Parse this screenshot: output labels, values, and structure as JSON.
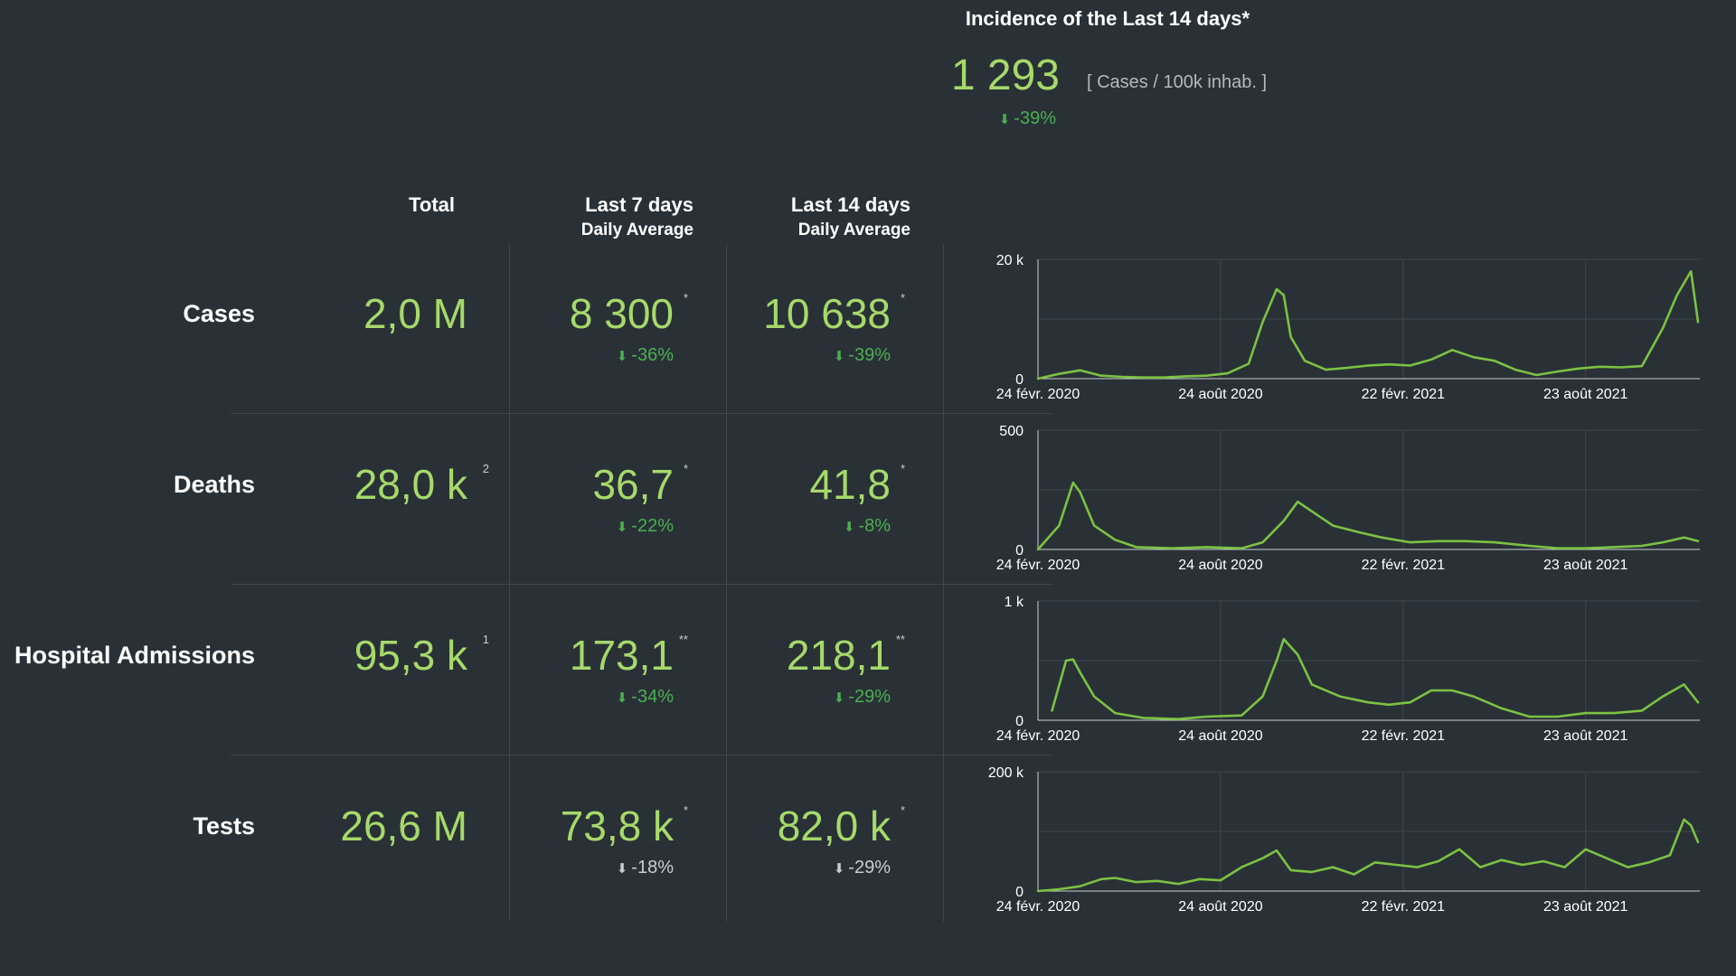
{
  "incidence": {
    "title": "Incidence of the Last 14 days*",
    "value": "1 293",
    "unit": "[ Cases / 100k inhab. ]",
    "change": "-39%"
  },
  "columns": {
    "total": "Total",
    "last7": "Last 7 days",
    "last7_sub": "Daily Average",
    "last14": "Last 14 days",
    "last14_sub": "Daily Average"
  },
  "rows": [
    {
      "label": "Cases",
      "total": "2,0 M",
      "total_sup": "",
      "last7": "8 300",
      "last7_sup": "*",
      "last7_change": "-36%",
      "last14": "10 638",
      "last14_sup": "*",
      "last14_change": "-39%",
      "change_color": "#4caf50",
      "arrow_icon": "arrow-down-icon"
    },
    {
      "label": "Deaths",
      "total": "28,0 k",
      "total_sup": "2",
      "last7": "36,7",
      "last7_sup": "*",
      "last7_change": "-22%",
      "last14": "41,8",
      "last14_sup": "*",
      "last14_change": "-8%",
      "change_color": "#4caf50",
      "arrow_icon": "arrow-down-icon"
    },
    {
      "label": "Hospital Admissions",
      "total": "95,3 k",
      "total_sup": "1",
      "last7": "173,1",
      "last7_sup": "**",
      "last7_change": "-34%",
      "last14": "218,1",
      "last14_sup": "**",
      "last14_change": "-29%",
      "change_color": "#4caf50",
      "arrow_icon": "arrow-down-icon"
    },
    {
      "label": "Tests",
      "total": "26,6 M",
      "total_sup": "",
      "last7": "73,8 k",
      "last7_sup": "*",
      "last7_change": "-18%",
      "last14": "82,0 k",
      "last14_sup": "*",
      "last14_change": "-29%",
      "change_color": "#c9ced1",
      "arrow_icon": "arrow-down-icon"
    }
  ],
  "colors": {
    "background": "#293137",
    "value_green": "#a6d96a",
    "change_green": "#4caf50",
    "line": "#7cc242",
    "grid": "#3d474e"
  },
  "chart_data": [
    {
      "type": "line",
      "title": "",
      "xlabel": "",
      "ylabel": "",
      "x_tick_labels": [
        "24 févr. 2020",
        "24 août 2020",
        "22 févr. 2021",
        "23 août 2021"
      ],
      "y_tick_labels": [
        "0",
        "20 k"
      ],
      "ylim": [
        0,
        20000
      ],
      "grid": true,
      "x": [
        "2020-02-24",
        "2020-03-16",
        "2020-04-06",
        "2020-04-27",
        "2020-05-18",
        "2020-06-08",
        "2020-06-29",
        "2020-07-20",
        "2020-08-10",
        "2020-08-31",
        "2020-09-21",
        "2020-10-05",
        "2020-10-19",
        "2020-10-26",
        "2020-11-02",
        "2020-11-16",
        "2020-12-07",
        "2020-12-28",
        "2021-01-18",
        "2021-02-08",
        "2021-03-01",
        "2021-03-22",
        "2021-04-12",
        "2021-05-03",
        "2021-05-24",
        "2021-06-14",
        "2021-07-05",
        "2021-07-26",
        "2021-08-16",
        "2021-09-06",
        "2021-09-27",
        "2021-10-18",
        "2021-11-08",
        "2021-11-22",
        "2021-12-06",
        "2021-12-13"
      ],
      "series": [
        {
          "values": [
            0,
            800,
            1400,
            500,
            300,
            200,
            200,
            400,
            500,
            900,
            2500,
            9500,
            15000,
            14000,
            7000,
            3000,
            1500,
            1800,
            2200,
            2400,
            2200,
            3200,
            4800,
            3600,
            3000,
            1500,
            600,
            1200,
            1700,
            2000,
            1900,
            2100,
            8500,
            14000,
            18000,
            9500
          ]
        }
      ]
    },
    {
      "type": "line",
      "title": "",
      "xlabel": "",
      "ylabel": "",
      "x_tick_labels": [
        "24 févr. 2020",
        "24 août 2020",
        "22 févr. 2021",
        "23 août 2021"
      ],
      "y_tick_labels": [
        "0",
        "500"
      ],
      "ylim": [
        0,
        500
      ],
      "grid": true,
      "x": [
        "2020-02-24",
        "2020-03-16",
        "2020-03-30",
        "2020-04-06",
        "2020-04-20",
        "2020-05-11",
        "2020-06-01",
        "2020-07-06",
        "2020-08-10",
        "2020-09-14",
        "2020-10-05",
        "2020-10-26",
        "2020-11-09",
        "2020-11-23",
        "2020-12-14",
        "2021-01-11",
        "2021-02-01",
        "2021-03-01",
        "2021-03-29",
        "2021-04-26",
        "2021-05-24",
        "2021-06-28",
        "2021-07-26",
        "2021-08-23",
        "2021-09-20",
        "2021-10-18",
        "2021-11-08",
        "2021-11-29",
        "2021-12-13"
      ],
      "series": [
        {
          "values": [
            0,
            100,
            280,
            240,
            100,
            40,
            10,
            5,
            10,
            5,
            30,
            120,
            200,
            160,
            100,
            70,
            50,
            30,
            35,
            35,
            30,
            15,
            5,
            5,
            10,
            15,
            30,
            50,
            35
          ]
        }
      ]
    },
    {
      "type": "line",
      "title": "",
      "xlabel": "",
      "ylabel": "",
      "x_tick_labels": [
        "24 févr. 2020",
        "24 août 2020",
        "22 févr. 2021",
        "23 août 2021"
      ],
      "y_tick_labels": [
        "0",
        "1 k"
      ],
      "ylim": [
        0,
        1000
      ],
      "grid": true,
      "x": [
        "2020-03-09",
        "2020-03-23",
        "2020-03-30",
        "2020-04-06",
        "2020-04-20",
        "2020-05-11",
        "2020-06-08",
        "2020-07-13",
        "2020-08-10",
        "2020-09-14",
        "2020-10-05",
        "2020-10-19",
        "2020-10-26",
        "2020-11-09",
        "2020-11-23",
        "2020-12-21",
        "2021-01-18",
        "2021-02-08",
        "2021-03-01",
        "2021-03-22",
        "2021-04-12",
        "2021-05-03",
        "2021-05-31",
        "2021-06-28",
        "2021-07-26",
        "2021-08-23",
        "2021-09-20",
        "2021-10-18",
        "2021-11-08",
        "2021-11-29",
        "2021-12-13"
      ],
      "series": [
        {
          "values": [
            80,
            500,
            510,
            400,
            200,
            60,
            20,
            10,
            30,
            40,
            200,
            500,
            680,
            550,
            300,
            200,
            150,
            130,
            150,
            250,
            250,
            200,
            100,
            30,
            30,
            60,
            60,
            80,
            200,
            300,
            150
          ]
        }
      ]
    },
    {
      "type": "line",
      "title": "",
      "xlabel": "",
      "ylabel": "",
      "x_tick_labels": [
        "24 févr. 2020",
        "24 août 2020",
        "22 févr. 2021",
        "23 août 2021"
      ],
      "y_tick_labels": [
        "0",
        "200 k"
      ],
      "ylim": [
        0,
        200000
      ],
      "grid": true,
      "x": [
        "2020-02-24",
        "2020-03-16",
        "2020-04-06",
        "2020-04-27",
        "2020-05-11",
        "2020-06-01",
        "2020-06-22",
        "2020-07-13",
        "2020-08-03",
        "2020-08-24",
        "2020-09-14",
        "2020-10-05",
        "2020-10-19",
        "2020-11-02",
        "2020-11-23",
        "2020-12-14",
        "2021-01-04",
        "2021-01-25",
        "2021-02-15",
        "2021-03-08",
        "2021-03-29",
        "2021-04-19",
        "2021-05-10",
        "2021-05-31",
        "2021-06-21",
        "2021-07-12",
        "2021-08-02",
        "2021-08-23",
        "2021-09-13",
        "2021-10-04",
        "2021-10-25",
        "2021-11-15",
        "2021-11-29",
        "2021-12-06",
        "2021-12-13"
      ],
      "series": [
        {
          "values": [
            0,
            3000,
            8000,
            20000,
            22000,
            15000,
            17000,
            12000,
            20000,
            18000,
            40000,
            55000,
            68000,
            35000,
            32000,
            40000,
            28000,
            48000,
            44000,
            40000,
            50000,
            70000,
            40000,
            52000,
            44000,
            50000,
            40000,
            70000,
            55000,
            40000,
            48000,
            60000,
            120000,
            110000,
            82000
          ]
        }
      ]
    }
  ]
}
